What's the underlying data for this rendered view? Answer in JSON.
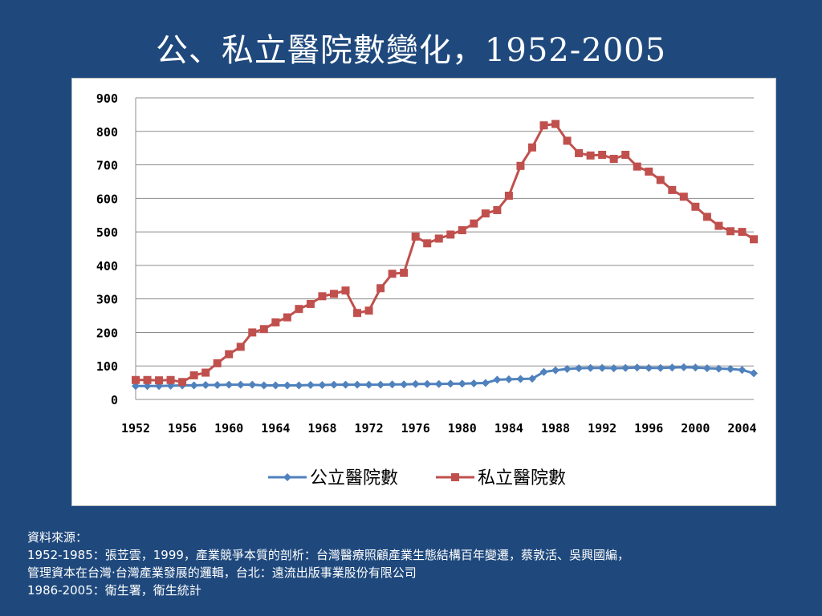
{
  "slide": {
    "title": "公、私立醫院數變化，1952-2005"
  },
  "source": {
    "heading": "資料來源：",
    "lines": [
      "1952-1985：張苙雲，1999，產業競爭本質的剖析：台灣醫療照顧產業生態結構百年變遷，蔡敦活、吳興國編，",
      "管理資本在台灣‧台灣產業發展的邏輯，台北：遠流出版事業股份有限公司",
      "1986-2005：衛生署，衛生統計"
    ]
  },
  "chart_data": {
    "type": "line",
    "title": "",
    "xlabel": "",
    "ylabel": "",
    "ylim": [
      0,
      900
    ],
    "yticks": [
      0,
      100,
      200,
      300,
      400,
      500,
      600,
      700,
      800,
      900
    ],
    "xlim": [
      1952,
      2005
    ],
    "xtick_labels": [
      "1952",
      "1956",
      "1960",
      "1964",
      "1968",
      "1972",
      "1976",
      "1980",
      "1984",
      "1988",
      "1992",
      "1996",
      "2000",
      "2004"
    ],
    "grid": "horizontal",
    "legend": "bottom",
    "x": [
      1952,
      1953,
      1954,
      1955,
      1956,
      1957,
      1958,
      1959,
      1960,
      1961,
      1962,
      1963,
      1964,
      1965,
      1966,
      1967,
      1968,
      1969,
      1970,
      1971,
      1972,
      1973,
      1974,
      1975,
      1976,
      1977,
      1978,
      1979,
      1980,
      1981,
      1982,
      1983,
      1984,
      1985,
      1986,
      1987,
      1988,
      1989,
      1990,
      1991,
      1992,
      1993,
      1994,
      1995,
      1996,
      1997,
      1998,
      1999,
      2000,
      2001,
      2002,
      2003,
      2004,
      2005
    ],
    "series": [
      {
        "name": "公立醫院數",
        "color": "#4f81bd",
        "marker": "diamond",
        "values": [
          40,
          40,
          40,
          41,
          42,
          42,
          43,
          43,
          44,
          44,
          44,
          42,
          42,
          42,
          42,
          43,
          43,
          44,
          44,
          44,
          44,
          44,
          45,
          45,
          46,
          46,
          46,
          47,
          47,
          48,
          49,
          59,
          60,
          61,
          62,
          82,
          87,
          91,
          93,
          94,
          94,
          93,
          94,
          95,
          94,
          94,
          95,
          96,
          95,
          93,
          92,
          91,
          88,
          78
        ]
      },
      {
        "name": "私立醫院數",
        "color": "#c0504d",
        "marker": "square",
        "values": [
          58,
          58,
          57,
          58,
          52,
          72,
          80,
          108,
          135,
          157,
          200,
          210,
          230,
          245,
          270,
          285,
          308,
          315,
          325,
          258,
          265,
          332,
          375,
          378,
          486,
          466,
          480,
          492,
          505,
          525,
          555,
          565,
          608,
          697,
          752,
          818,
          822,
          772,
          735,
          728,
          730,
          718,
          730,
          695,
          680,
          655,
          625,
          605,
          575,
          545,
          518,
          502,
          500,
          478
        ]
      }
    ]
  }
}
